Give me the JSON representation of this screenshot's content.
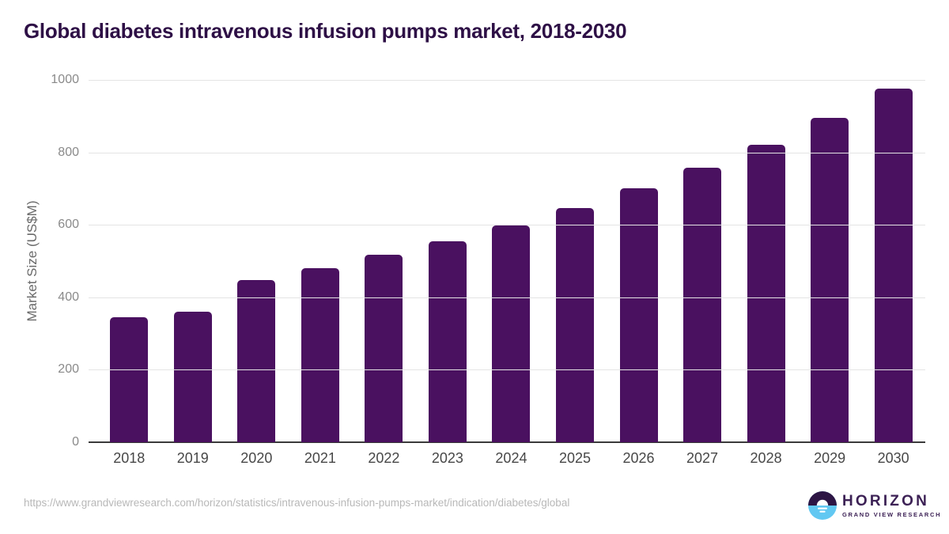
{
  "header": {
    "title": "Global diabetes intravenous infusion pumps market, 2018-2030"
  },
  "chart_data": {
    "type": "bar",
    "title": "Global diabetes intravenous infusion pumps market, 2018-2030",
    "categories": [
      "2018",
      "2019",
      "2020",
      "2021",
      "2022",
      "2023",
      "2024",
      "2025",
      "2026",
      "2027",
      "2028",
      "2029",
      "2030"
    ],
    "values": [
      344,
      360,
      448,
      481,
      517,
      555,
      598,
      646,
      700,
      758,
      821,
      895,
      977
    ],
    "xlabel": "",
    "ylabel": "Market Size (US$M)",
    "ylim": [
      0,
      1000
    ],
    "yticks": [
      0,
      200,
      400,
      600,
      800,
      1000
    ],
    "grid": true,
    "legend": "none",
    "bar_color": "#4a1160"
  },
  "footer": {
    "source_url": "https://www.grandviewresearch.com/horizon/statistics/intravenous-infusion-pumps-market/indication/diabetes/global",
    "logo": {
      "name": "HORIZON",
      "tagline": "GRAND VIEW RESEARCH",
      "icon": "horizon-sun-icon",
      "icon_top_color": "#2d1544",
      "icon_bottom_color": "#62c8f2"
    }
  },
  "colors": {
    "title_text": "#2e1046",
    "bar": "#4a1160",
    "gridline": "#e4e4e4",
    "axis_line": "#3a3a3a",
    "ytick_text": "#8a8a8a",
    "xtick_text": "#474747",
    "url_text": "#b8b8b8",
    "logo_purple": "#3c2155"
  }
}
